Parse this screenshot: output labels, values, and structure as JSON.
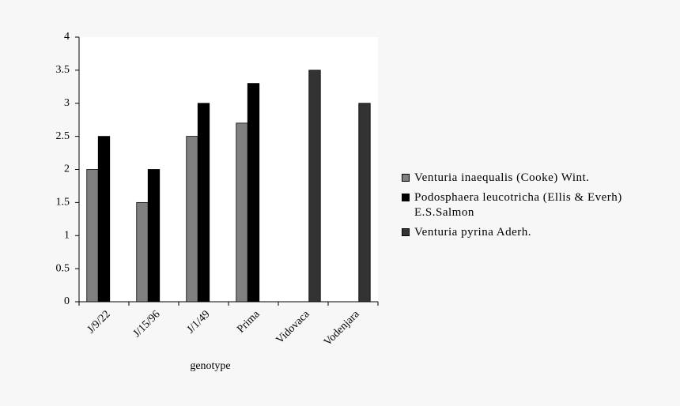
{
  "chart_data": {
    "type": "bar",
    "categories": [
      "J/9/22",
      "J/15/96",
      "J/1/49",
      "Prima",
      "Vidovaca",
      "Vodenjara"
    ],
    "series": [
      {
        "name": "Venturia inaequalis (Cooke) Wint.",
        "color": "#808080",
        "values": [
          2,
          1.5,
          2.5,
          2.7,
          null,
          null
        ]
      },
      {
        "name": "Podosphaera leucotricha (Ellis & Everh) E.S.Salmon",
        "color": "#000000",
        "values": [
          2.5,
          2,
          3,
          3.3,
          null,
          null
        ]
      },
      {
        "name": "Venturia pyrina Aderh.",
        "color": "#333333",
        "values": [
          null,
          null,
          null,
          null,
          3.5,
          3
        ]
      }
    ],
    "x_label": "genotype",
    "ylim": [
      0,
      4
    ],
    "yticks": [
      0,
      0.5,
      1,
      1.5,
      2,
      2.5,
      3,
      3.5,
      4
    ],
    "legend": "right"
  }
}
